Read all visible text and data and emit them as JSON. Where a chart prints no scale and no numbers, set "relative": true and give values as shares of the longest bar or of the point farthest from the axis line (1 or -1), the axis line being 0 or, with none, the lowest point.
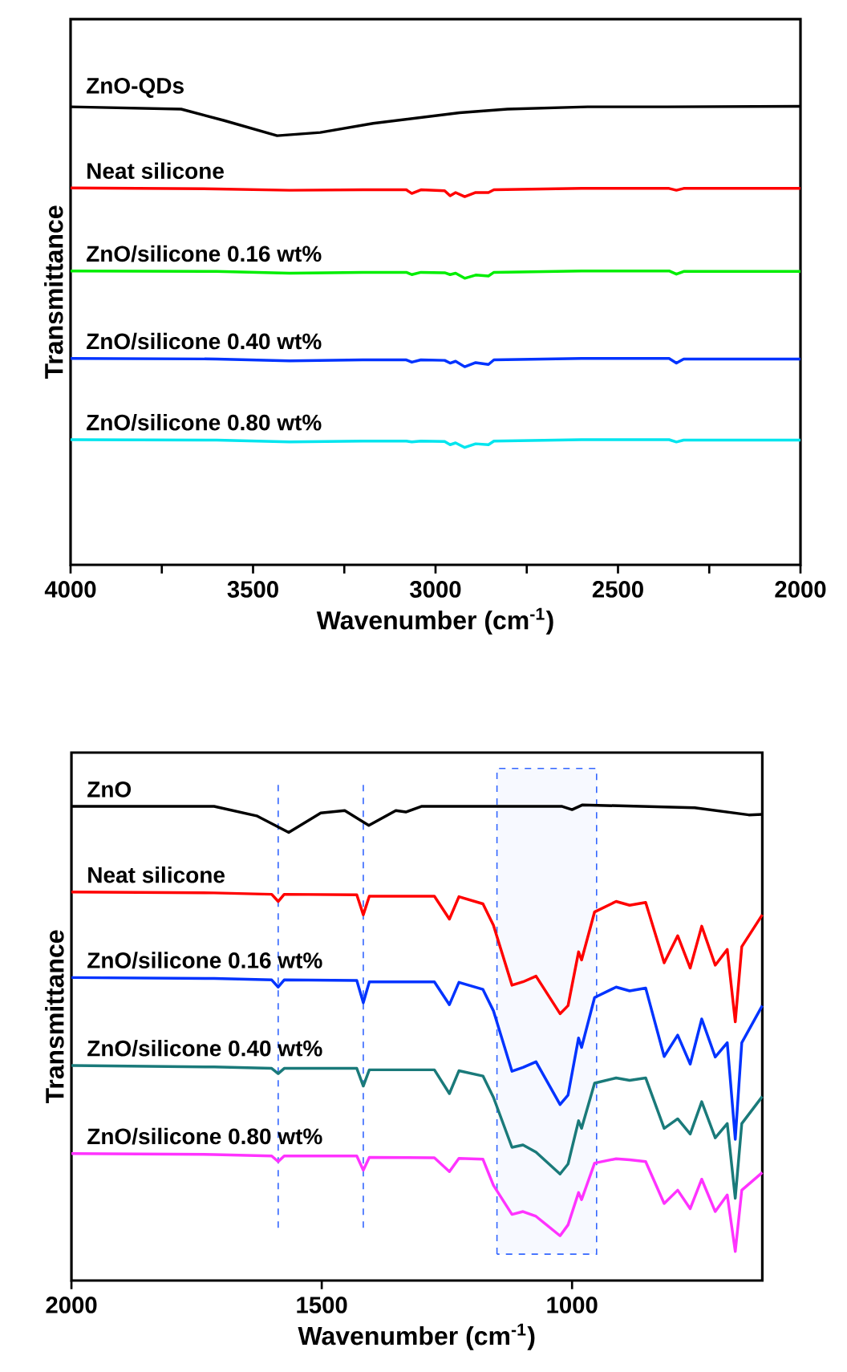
{
  "chart_data": [
    {
      "type": "line",
      "relative": true,
      "tick_labels": "x",
      "xlabel": "Wavenumber (cm$^{-1}$)",
      "ylabel": "Transmittance",
      "xlim": [
        4000,
        2000
      ],
      "xticks": [
        4000,
        {
          "value": 3750,
          "label": null
        },
        3500,
        {
          "value": 3250,
          "label": null
        },
        3000,
        {
          "value": 2750,
          "label": null
        },
        2500,
        {
          "value": 2250,
          "label": null
        },
        2000
      ],
      "series": [
        {
          "name": "ZnO-QDs",
          "color": "#000000",
          "x": [
            4000,
            3697,
            3579,
            3434,
            3316,
            3171,
            2934,
            2803,
            2583,
            2364,
            2000
          ],
          "values": [
            0.999,
            0.994,
            0.969,
            0.936,
            0.943,
            0.963,
            0.986,
            0.994,
            0.999,
            0.999,
            1.0
          ]
        },
        {
          "name": "Neat silicone",
          "color": "#ff0000",
          "x": [
            4000,
            3600,
            3400,
            3200,
            3080,
            3065,
            3040,
            2975,
            2960,
            2945,
            2920,
            2890,
            2855,
            2840,
            2600,
            2360,
            2340,
            2320,
            2000
          ],
          "values": [
            0.822,
            0.82,
            0.817,
            0.818,
            0.818,
            0.81,
            0.818,
            0.816,
            0.805,
            0.812,
            0.803,
            0.812,
            0.812,
            0.818,
            0.821,
            0.821,
            0.817,
            0.821,
            0.821
          ]
        },
        {
          "name": "ZnO/silicone 0.16 wt%",
          "color": "#00ee00",
          "x": [
            4000,
            3600,
            3400,
            3200,
            3080,
            3065,
            3040,
            2975,
            2960,
            2945,
            2920,
            2890,
            2855,
            2840,
            2600,
            2360,
            2340,
            2320,
            2000
          ],
          "values": [
            0.641,
            0.64,
            0.636,
            0.638,
            0.638,
            0.633,
            0.638,
            0.637,
            0.633,
            0.636,
            0.625,
            0.632,
            0.63,
            0.638,
            0.641,
            0.641,
            0.634,
            0.64,
            0.64
          ]
        },
        {
          "name": "ZnO/silicone 0.40 wt%",
          "color": "#0033ff",
          "x": [
            4000,
            3600,
            3400,
            3200,
            3080,
            3065,
            3040,
            2975,
            2960,
            2945,
            2920,
            2890,
            2855,
            2840,
            2600,
            2360,
            2340,
            2320,
            2000
          ],
          "values": [
            0.45,
            0.449,
            0.445,
            0.447,
            0.447,
            0.442,
            0.447,
            0.446,
            0.44,
            0.444,
            0.432,
            0.441,
            0.437,
            0.447,
            0.45,
            0.45,
            0.44,
            0.449,
            0.449
          ]
        },
        {
          "name": "ZnO/silicone 0.80 wt%",
          "color": "#00e5ee",
          "x": [
            4000,
            3600,
            3400,
            3200,
            3080,
            3065,
            3040,
            2975,
            2960,
            2945,
            2920,
            2890,
            2855,
            2840,
            2600,
            2360,
            2340,
            2320,
            2000
          ],
          "values": [
            0.273,
            0.272,
            0.268,
            0.27,
            0.27,
            0.268,
            0.27,
            0.269,
            0.262,
            0.266,
            0.256,
            0.264,
            0.262,
            0.27,
            0.273,
            0.273,
            0.268,
            0.272,
            0.272
          ]
        }
      ]
    },
    {
      "type": "line",
      "relative": true,
      "tick_labels": "x",
      "xlabel": "Wavenumber (cm$^{-1}$)",
      "ylabel": "Transmittance",
      "xlim": [
        2000,
        620
      ],
      "xticks": [
        2000,
        1500,
        1000
      ],
      "ref_lines": [
        {
          "axis": "x",
          "value": 1587,
          "color": "#3366ff",
          "line_style": "dashed"
        },
        {
          "axis": "x",
          "value": 1417,
          "color": "#3366ff",
          "line_style": "dashed"
        }
      ],
      "bands": [
        {
          "axis": "x",
          "from": 1150,
          "to": 951,
          "color": "#3366ff"
        }
      ],
      "series": [
        {
          "name": "ZnO",
          "color": "#000000",
          "x": [
            2000,
            1715,
            1630,
            1566,
            1502,
            1454,
            1406,
            1352,
            1332,
            1300,
            1021,
            1000,
            979,
            755,
            647,
            620
          ],
          "values": [
            0.997,
            0.997,
            0.977,
            0.942,
            0.983,
            0.988,
            0.957,
            0.988,
            0.985,
            0.997,
            0.997,
            0.99,
            1.0,
            0.994,
            0.979,
            0.98
          ]
        },
        {
          "name": "Neat silicone",
          "color": "#ff0000",
          "x": [
            2000,
            1715,
            1600,
            1587,
            1575,
            1430,
            1417,
            1405,
            1275,
            1245,
            1226,
            1178,
            1157,
            1120,
            1098,
            1072,
            1024,
            1008,
            987,
            981,
            955,
            912,
            885,
            853,
            816,
            789,
            764,
            741,
            714,
            690,
            674,
            661,
            620
          ],
          "values": [
            0.817,
            0.815,
            0.812,
            0.797,
            0.812,
            0.811,
            0.769,
            0.808,
            0.808,
            0.76,
            0.807,
            0.792,
            0.747,
            0.621,
            0.628,
            0.64,
            0.561,
            0.578,
            0.691,
            0.674,
            0.775,
            0.797,
            0.789,
            0.795,
            0.668,
            0.725,
            0.657,
            0.745,
            0.663,
            0.696,
            0.544,
            0.702,
            0.769
          ]
        },
        {
          "name": "ZnO/silicone 0.16 wt%",
          "color": "#0033ff",
          "x": [
            2000,
            1715,
            1600,
            1587,
            1575,
            1430,
            1417,
            1405,
            1275,
            1245,
            1226,
            1178,
            1157,
            1120,
            1098,
            1072,
            1024,
            1008,
            987,
            981,
            955,
            912,
            885,
            853,
            816,
            789,
            764,
            741,
            714,
            690,
            674,
            661,
            620
          ],
          "values": [
            0.637,
            0.635,
            0.632,
            0.617,
            0.632,
            0.631,
            0.584,
            0.628,
            0.628,
            0.58,
            0.627,
            0.612,
            0.567,
            0.44,
            0.448,
            0.46,
            0.37,
            0.39,
            0.51,
            0.49,
            0.595,
            0.617,
            0.609,
            0.615,
            0.471,
            0.516,
            0.455,
            0.55,
            0.47,
            0.5,
            0.297,
            0.5,
            0.578
          ]
        },
        {
          "name": "ZnO/silicone 0.40 wt%",
          "color": "#1a7a7a",
          "x": [
            2000,
            1715,
            1600,
            1587,
            1575,
            1430,
            1417,
            1405,
            1275,
            1245,
            1226,
            1178,
            1157,
            1120,
            1098,
            1072,
            1024,
            1008,
            987,
            981,
            955,
            912,
            885,
            853,
            816,
            789,
            764,
            741,
            714,
            690,
            674,
            661,
            620
          ],
          "values": [
            0.452,
            0.449,
            0.446,
            0.435,
            0.446,
            0.446,
            0.409,
            0.443,
            0.443,
            0.393,
            0.441,
            0.43,
            0.385,
            0.28,
            0.285,
            0.27,
            0.224,
            0.245,
            0.336,
            0.32,
            0.415,
            0.426,
            0.421,
            0.426,
            0.32,
            0.34,
            0.308,
            0.376,
            0.3,
            0.33,
            0.173,
            0.33,
            0.387
          ]
        },
        {
          "name": "ZnO/silicone 0.80 wt%",
          "color": "#ff33ff",
          "x": [
            2000,
            1715,
            1600,
            1587,
            1575,
            1430,
            1417,
            1405,
            1275,
            1245,
            1226,
            1178,
            1157,
            1120,
            1098,
            1072,
            1024,
            1008,
            987,
            981,
            955,
            912,
            885,
            853,
            816,
            789,
            764,
            741,
            714,
            690,
            674,
            661,
            620
          ],
          "values": [
            0.267,
            0.265,
            0.262,
            0.25,
            0.262,
            0.262,
            0.232,
            0.259,
            0.258,
            0.229,
            0.257,
            0.255,
            0.2,
            0.139,
            0.145,
            0.135,
            0.094,
            0.117,
            0.185,
            0.17,
            0.247,
            0.256,
            0.254,
            0.25,
            0.162,
            0.19,
            0.151,
            0.213,
            0.145,
            0.18,
            0.061,
            0.19,
            0.227
          ]
        }
      ]
    }
  ]
}
